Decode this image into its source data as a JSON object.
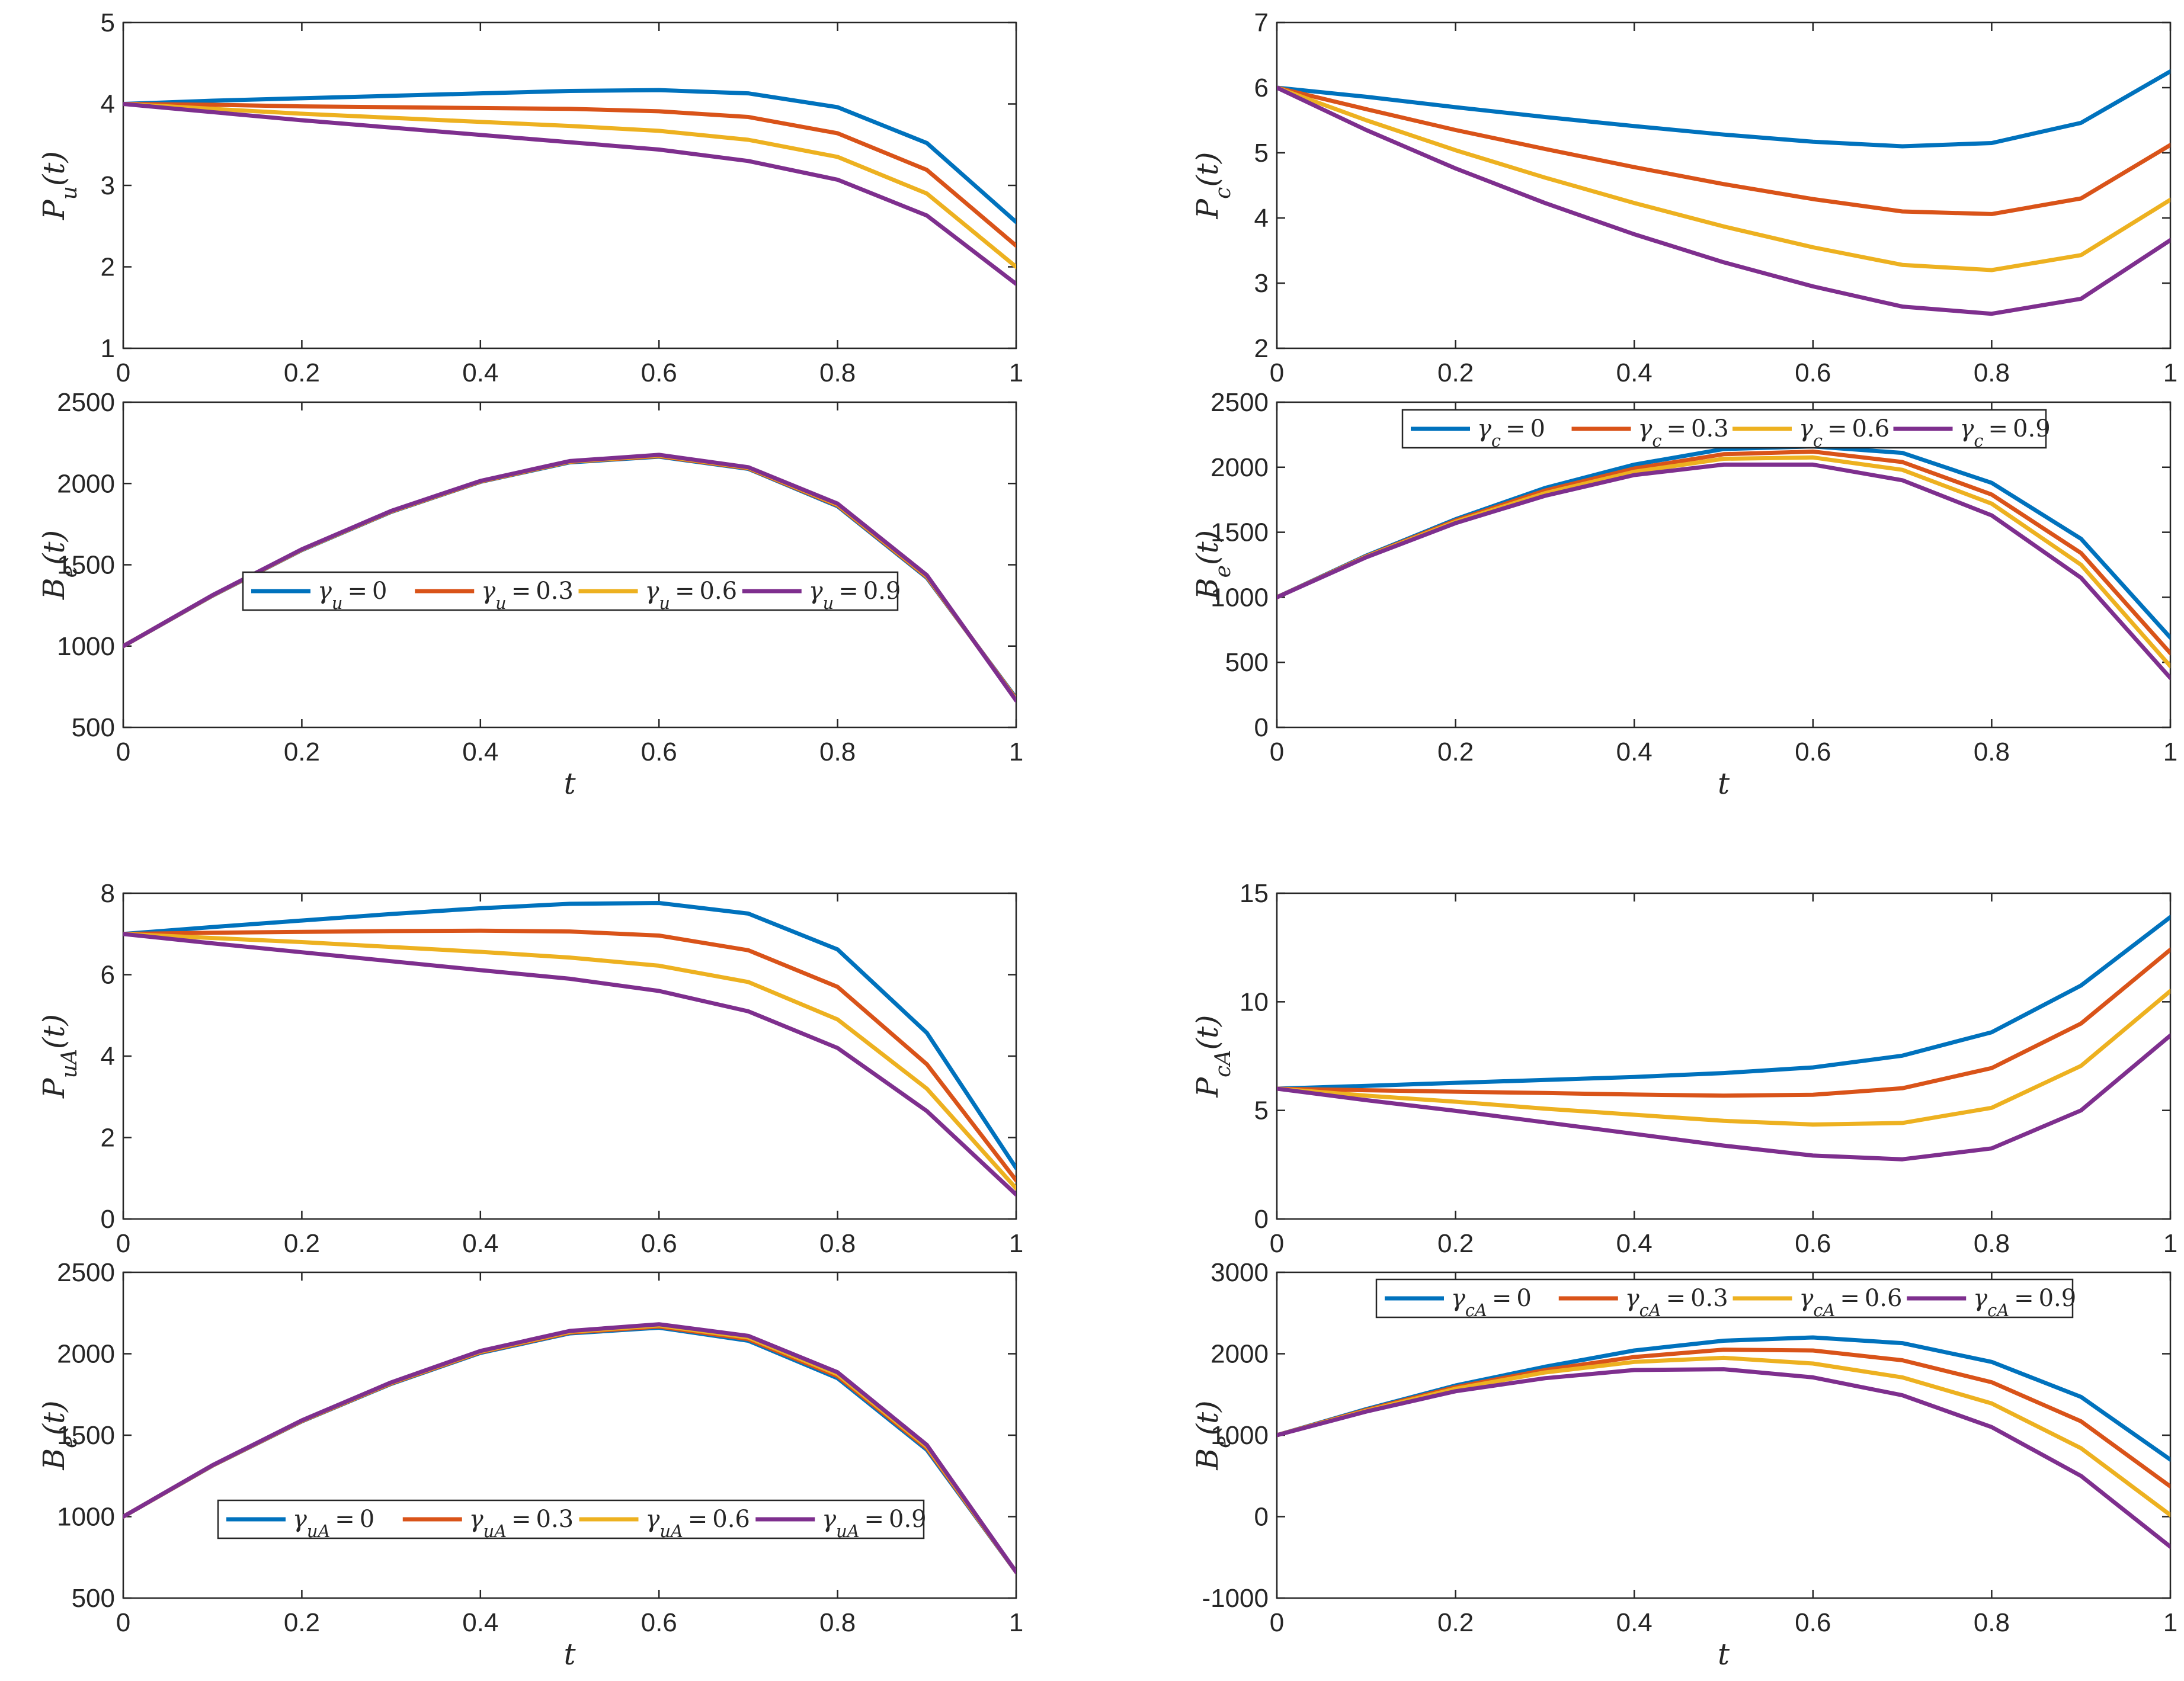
{
  "figure": {
    "colors": [
      "#0072BD",
      "#D95319",
      "#EDB120",
      "#7E2F8E"
    ],
    "x": [
      0,
      0.1,
      0.2,
      0.3,
      0.4,
      0.5,
      0.6,
      0.7,
      0.8,
      0.9,
      1.0
    ]
  },
  "chart_data": [
    {
      "id": "pu",
      "type": "line",
      "ylabel": "P_u(t)",
      "ylim": [
        1,
        5
      ],
      "yticks": [
        1,
        2,
        3,
        4,
        5
      ],
      "xticks": [
        0,
        0.2,
        0.4,
        0.6,
        0.8,
        1
      ],
      "xlabel": "",
      "series": [
        {
          "name": "γ_u = 0",
          "values": [
            4.0,
            4.04,
            4.07,
            4.1,
            4.13,
            4.16,
            4.17,
            4.13,
            3.96,
            3.52,
            2.55
          ]
        },
        {
          "name": "γ_u = 0.3",
          "values": [
            4.0,
            3.99,
            3.97,
            3.96,
            3.95,
            3.94,
            3.91,
            3.84,
            3.64,
            3.19,
            2.26
          ]
        },
        {
          "name": "γ_u = 0.6",
          "values": [
            4.0,
            3.94,
            3.88,
            3.83,
            3.78,
            3.73,
            3.67,
            3.56,
            3.35,
            2.9,
            2.0
          ]
        },
        {
          "name": "γ_u = 0.9",
          "values": [
            4.0,
            3.9,
            3.8,
            3.71,
            3.62,
            3.53,
            3.44,
            3.3,
            3.07,
            2.63,
            1.79
          ]
        }
      ]
    },
    {
      "id": "be1",
      "type": "line",
      "ylabel": "B_e(t)",
      "ylim": [
        500,
        2500
      ],
      "yticks": [
        500,
        1000,
        1500,
        2000,
        2500
      ],
      "xticks": [
        0,
        0.2,
        0.4,
        0.6,
        0.8,
        1
      ],
      "xlabel": "t",
      "legend": [
        "γ_u = 0",
        "γ_u = 0.3",
        "γ_u = 0.6",
        "γ_u = 0.9"
      ],
      "series": [
        {
          "name": "γ_u = 0",
          "values": [
            1000,
            1310,
            1590,
            1825,
            2010,
            2130,
            2165,
            2090,
            1860,
            1420,
            680
          ]
        },
        {
          "name": "γ_u = 0.3",
          "values": [
            1000,
            1311,
            1592,
            1827,
            2012,
            2133,
            2168,
            2093,
            1865,
            1425,
            675
          ]
        },
        {
          "name": "γ_u = 0.6",
          "values": [
            1000,
            1312,
            1593,
            1829,
            2014,
            2135,
            2172,
            2097,
            1870,
            1430,
            670
          ]
        },
        {
          "name": "γ_u = 0.9",
          "values": [
            1000,
            1313,
            1595,
            1831,
            2016,
            2138,
            2176,
            2100,
            1876,
            1436,
            665
          ]
        }
      ]
    },
    {
      "id": "pc",
      "type": "line",
      "ylabel": "P_c(t)",
      "ylim": [
        2,
        7
      ],
      "yticks": [
        2,
        3,
        4,
        5,
        6,
        7
      ],
      "xticks": [
        0,
        0.2,
        0.4,
        0.6,
        0.8,
        1
      ],
      "xlabel": "",
      "series": [
        {
          "name": "γ_c = 0",
          "values": [
            6.0,
            5.86,
            5.7,
            5.55,
            5.41,
            5.28,
            5.17,
            5.1,
            5.15,
            5.46,
            6.25
          ]
        },
        {
          "name": "γ_c = 0.3",
          "values": [
            6.0,
            5.67,
            5.35,
            5.06,
            4.78,
            4.52,
            4.29,
            4.1,
            4.06,
            4.3,
            5.12
          ]
        },
        {
          "name": "γ_c = 0.6",
          "values": [
            6.0,
            5.5,
            5.04,
            4.62,
            4.23,
            3.87,
            3.55,
            3.28,
            3.2,
            3.43,
            4.28
          ]
        },
        {
          "name": "γ_c = 0.9",
          "values": [
            6.0,
            5.35,
            4.76,
            4.23,
            3.75,
            3.32,
            2.95,
            2.64,
            2.53,
            2.76,
            3.66
          ]
        }
      ]
    },
    {
      "id": "be2",
      "type": "line",
      "ylabel": "B_e(t)",
      "ylim": [
        0,
        2500
      ],
      "yticks": [
        0,
        500,
        1000,
        1500,
        2000,
        2500
      ],
      "xticks": [
        0,
        0.2,
        0.4,
        0.6,
        0.8,
        1
      ],
      "xlabel": "t",
      "legend": [
        "γ_c = 0",
        "γ_c = 0.3",
        "γ_c = 0.6",
        "γ_c = 0.9"
      ],
      "series": [
        {
          "name": "γ_c = 0",
          "values": [
            1000,
            1320,
            1600,
            1840,
            2020,
            2140,
            2160,
            2110,
            1880,
            1450,
            690
          ]
        },
        {
          "name": "γ_c = 0.3",
          "values": [
            1000,
            1315,
            1590,
            1820,
            1990,
            2100,
            2120,
            2040,
            1790,
            1340,
            570
          ]
        },
        {
          "name": "γ_c = 0.6",
          "values": [
            1000,
            1312,
            1580,
            1800,
            1965,
            2065,
            2075,
            1980,
            1720,
            1250,
            470
          ]
        },
        {
          "name": "γ_c = 0.9",
          "values": [
            1000,
            1308,
            1570,
            1780,
            1940,
            2020,
            2020,
            1900,
            1630,
            1150,
            380
          ]
        }
      ]
    },
    {
      "id": "pua",
      "type": "line",
      "ylabel": "P_uA(t)",
      "ylim": [
        0,
        8
      ],
      "yticks": [
        0,
        2,
        4,
        6,
        8
      ],
      "xticks": [
        0,
        0.2,
        0.4,
        0.6,
        0.8,
        1
      ],
      "xlabel": "",
      "series": [
        {
          "name": "γ_uA = 0",
          "values": [
            7.0,
            7.17,
            7.33,
            7.49,
            7.63,
            7.74,
            7.76,
            7.5,
            6.62,
            4.57,
            1.25
          ]
        },
        {
          "name": "γ_uA = 0.3",
          "values": [
            7.0,
            7.03,
            7.05,
            7.07,
            7.08,
            7.06,
            6.96,
            6.6,
            5.7,
            3.8,
            0.95
          ]
        },
        {
          "name": "γ_uA = 0.6",
          "values": [
            7.0,
            6.9,
            6.8,
            6.68,
            6.56,
            6.42,
            6.22,
            5.82,
            4.9,
            3.2,
            0.75
          ]
        },
        {
          "name": "γ_uA = 0.9",
          "values": [
            7.0,
            6.77,
            6.55,
            6.33,
            6.11,
            5.9,
            5.6,
            5.1,
            4.2,
            2.65,
            0.6
          ]
        }
      ]
    },
    {
      "id": "be3",
      "type": "line",
      "ylabel": "B_e(t)",
      "ylim": [
        500,
        2500
      ],
      "yticks": [
        500,
        1000,
        1500,
        2000,
        2500
      ],
      "xticks": [
        0,
        0.2,
        0.4,
        0.6,
        0.8,
        1
      ],
      "xlabel": "t",
      "legend": [
        "γ_uA = 0",
        "γ_uA = 0.3",
        "γ_uA = 0.6",
        "γ_uA = 0.9"
      ],
      "series": [
        {
          "name": "γ_uA = 0",
          "values": [
            1000,
            1313,
            1585,
            1815,
            2005,
            2125,
            2160,
            2080,
            1850,
            1410,
            660
          ]
        },
        {
          "name": "γ_uA = 0.3",
          "values": [
            1000,
            1314,
            1587,
            1818,
            2009,
            2130,
            2167,
            2090,
            1862,
            1420,
            660
          ]
        },
        {
          "name": "γ_uA = 0.6",
          "values": [
            1000,
            1315,
            1589,
            1821,
            2013,
            2135,
            2174,
            2100,
            1874,
            1430,
            660
          ]
        },
        {
          "name": "γ_uA = 0.9",
          "values": [
            1000,
            1316,
            1591,
            1824,
            2017,
            2140,
            2181,
            2110,
            1886,
            1440,
            660
          ]
        }
      ]
    },
    {
      "id": "pca",
      "type": "line",
      "ylabel": "P_cA(t)",
      "ylim": [
        0,
        15
      ],
      "yticks": [
        0,
        5,
        10,
        15
      ],
      "xticks": [
        0,
        0.2,
        0.4,
        0.6,
        0.8,
        1
      ],
      "xlabel": "",
      "series": [
        {
          "name": "γ_cA = 0",
          "values": [
            6.0,
            6.13,
            6.27,
            6.4,
            6.54,
            6.72,
            6.98,
            7.52,
            8.6,
            10.75,
            13.9
          ]
        },
        {
          "name": "γ_cA = 0.3",
          "values": [
            6.0,
            5.93,
            5.86,
            5.8,
            5.73,
            5.68,
            5.72,
            6.02,
            6.95,
            9.0,
            12.4
          ]
        },
        {
          "name": "γ_cA = 0.6",
          "values": [
            6.0,
            5.68,
            5.4,
            5.08,
            4.8,
            4.52,
            4.35,
            4.42,
            5.12,
            7.05,
            10.5
          ]
        },
        {
          "name": "γ_cA = 0.9",
          "values": [
            6.0,
            5.47,
            4.98,
            4.45,
            3.92,
            3.38,
            2.92,
            2.75,
            3.25,
            5.0,
            8.45
          ]
        }
      ]
    },
    {
      "id": "be4",
      "type": "line",
      "ylabel": "B_e(t)",
      "ylim": [
        -1000,
        3000
      ],
      "yticks": [
        -1000,
        0,
        1000,
        2000,
        3000
      ],
      "xticks": [
        0,
        0.2,
        0.4,
        0.6,
        0.8,
        1
      ],
      "xlabel": "t",
      "legend": [
        "γ_cA = 0",
        "γ_cA = 0.3",
        "γ_cA = 0.6",
        "γ_cA = 0.9"
      ],
      "series": [
        {
          "name": "γ_cA = 0",
          "values": [
            1000,
            1320,
            1610,
            1840,
            2040,
            2160,
            2200,
            2130,
            1900,
            1470,
            700
          ]
        },
        {
          "name": "γ_cA = 0.3",
          "values": [
            1000,
            1310,
            1590,
            1800,
            1960,
            2050,
            2040,
            1920,
            1650,
            1170,
            370
          ]
        },
        {
          "name": "γ_cA = 0.6",
          "values": [
            1000,
            1300,
            1570,
            1770,
            1900,
            1950,
            1880,
            1710,
            1390,
            840,
            20
          ]
        },
        {
          "name": "γ_cA = 0.9",
          "values": [
            1000,
            1290,
            1540,
            1700,
            1800,
            1810,
            1710,
            1490,
            1100,
            500,
            -370
          ]
        }
      ]
    }
  ]
}
